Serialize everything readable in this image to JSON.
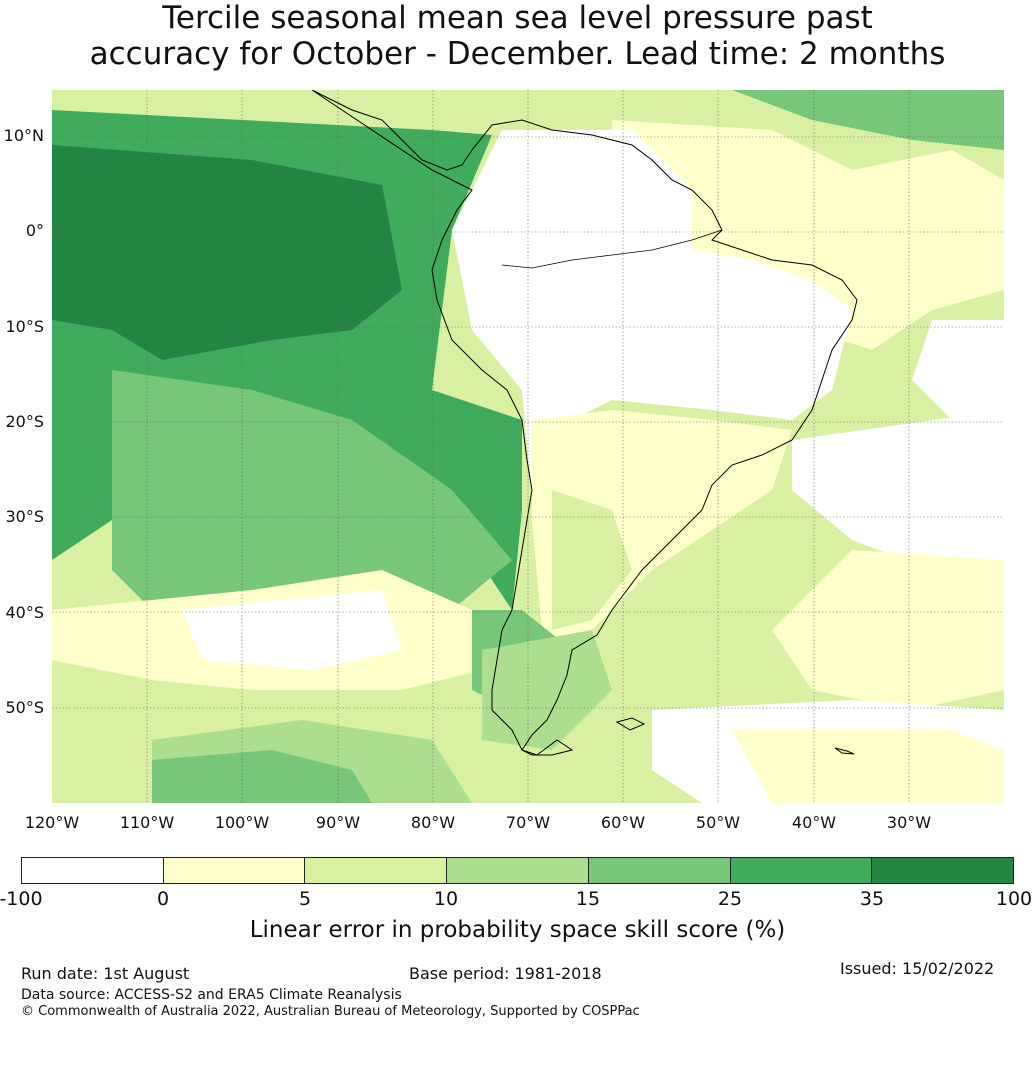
{
  "title": {
    "line1": "Tercile seasonal mean sea level pressure past",
    "line2": "accuracy for October - December. Lead time: 2 months"
  },
  "map": {
    "lat_labels": [
      "10°N",
      "0°",
      "10°S",
      "20°S",
      "30°S",
      "40°S",
      "50°S"
    ],
    "lon_labels": [
      "120°W",
      "110°W",
      "100°W",
      "90°W",
      "80°W",
      "70°W",
      "60°W",
      "50°W",
      "40°W",
      "30°W"
    ],
    "lon_range": [
      -125,
      -25
    ],
    "lat_range": [
      -60,
      15
    ]
  },
  "colorbar": {
    "ticks": [
      "-100",
      "0",
      "5",
      "10",
      "15",
      "25",
      "35",
      "100"
    ],
    "colors": [
      "#ffffff",
      "#ffffcc",
      "#d9f0a3",
      "#addd8e",
      "#78c679",
      "#41ab5d",
      "#238443"
    ],
    "label": "Linear error in probability space skill score (%)"
  },
  "footer": {
    "run_date": "Run date: 1st August",
    "base_period": "Base period: 1981-2018",
    "issued": "Issued: 15/02/2022",
    "data_source": "Data source: ACCESS-S2 and ERA5 Climate Reanalysis",
    "copyright": "© Commonwealth of Australia 2022, Australian Bureau of Meteorology, Supported by COSPPac"
  }
}
